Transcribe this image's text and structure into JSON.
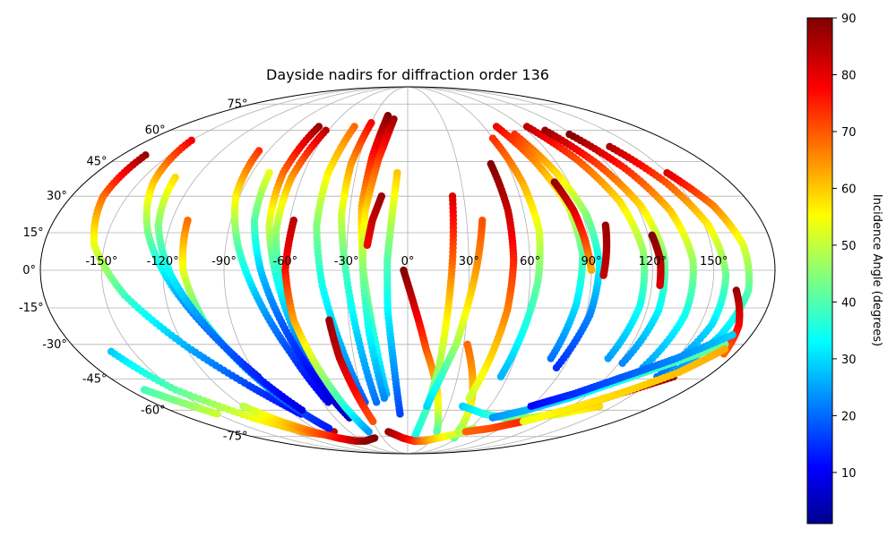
{
  "chart_data": {
    "type": "scatter",
    "projection": "mollweide",
    "title": "Dayside nadirs for diffraction order 136",
    "grid": true,
    "lon_ticks": [
      "-150°",
      "-120°",
      "-90°",
      "-60°",
      "-30°",
      "0°",
      "30°",
      "60°",
      "90°",
      "120°",
      "150°"
    ],
    "lat_ticks": [
      "75°",
      "60°",
      "45°",
      "30°",
      "15°",
      "0°",
      "-15°",
      "-30°",
      "-45°",
      "-60°",
      "-75°"
    ],
    "xlim": [
      -180,
      180
    ],
    "ylim": [
      -90,
      90
    ],
    "colorbar": {
      "label": "Incidence Angle (degrees)",
      "colormap": "jet",
      "range": [
        1,
        90
      ],
      "ticks": [
        "10",
        "20",
        "30",
        "40",
        "50",
        "60",
        "70",
        "80",
        "90"
      ]
    },
    "tracks": [
      {
        "lon": [
          -162,
          -150,
          -128,
          -108,
          -90,
          -76
        ],
        "lat": [
          -33,
          -50,
          -64,
          -72,
          -74,
          -72
        ],
        "inc": [
          30,
          42,
          55,
          65,
          75,
          85
        ]
      },
      {
        "lon": [
          -165,
          -163,
          -155,
          -140,
          -120,
          -100,
          -84
        ],
        "lat": [
          48,
          30,
          10,
          -10,
          -30,
          -48,
          -62
        ],
        "inc": [
          88,
          70,
          55,
          40,
          28,
          18,
          12
        ]
      },
      {
        "lon": [
          -150,
          -142,
          -130,
          -116,
          -102,
          -90
        ],
        "lat": [
          55,
          36,
          15,
          -6,
          -26,
          -44
        ],
        "inc": [
          80,
          62,
          45,
          30,
          18,
          8
        ]
      },
      {
        "lon": [
          -112,
          -110,
          -104,
          -94,
          -84,
          -76
        ],
        "lat": [
          20,
          0,
          -20,
          -40,
          -58,
          -70
        ],
        "inc": [
          70,
          55,
          40,
          28,
          20,
          14
        ]
      },
      {
        "lon": [
          -132,
          -126,
          -116,
          -104,
          -92,
          -80
        ],
        "lat": [
          38,
          18,
          -2,
          -22,
          -42,
          -60
        ],
        "inc": [
          60,
          46,
          34,
          24,
          16,
          10
        ]
      },
      {
        "lon": [
          -96,
          -92,
          -84,
          -74,
          -64,
          -56
        ],
        "lat": [
          50,
          30,
          10,
          -12,
          -34,
          -56
        ],
        "inc": [
          75,
          58,
          42,
          28,
          18,
          10
        ]
      },
      {
        "lon": [
          -70,
          -72,
          -70,
          -64,
          -58,
          -52
        ],
        "lat": [
          62,
          40,
          18,
          -4,
          -28,
          -52
        ],
        "inc": [
          88,
          70,
          52,
          36,
          24,
          14
        ]
      },
      {
        "lon": [
          -62,
          -66,
          -66,
          -62,
          -56,
          -50
        ],
        "lat": [
          60,
          38,
          16,
          -8,
          -32,
          -58
        ],
        "inc": [
          85,
          66,
          48,
          34,
          22,
          12
        ]
      },
      {
        "lon": [
          -80,
          -78,
          -72,
          -64,
          -56,
          -48
        ],
        "lat": [
          40,
          20,
          0,
          -22,
          -44,
          -64
        ],
        "inc": [
          55,
          42,
          30,
          20,
          12,
          6
        ]
      },
      {
        "lon": [
          -58,
          -60,
          -58,
          -52,
          -46,
          -40
        ],
        "lat": [
          20,
          0,
          -20,
          -40,
          -58,
          -72
        ],
        "inc": [
          85,
          78,
          65,
          50,
          38,
          26
        ]
      },
      {
        "lon": [
          -42,
          -46,
          -46,
          -42,
          -36,
          -30
        ],
        "lat": [
          62,
          40,
          18,
          -6,
          -30,
          -56
        ],
        "inc": [
          70,
          58,
          46,
          36,
          28,
          20
        ]
      },
      {
        "lon": [
          -30,
          -34,
          -34,
          -30,
          -26,
          -22
        ],
        "lat": [
          64,
          44,
          22,
          -2,
          -28,
          -56
        ],
        "inc": [
          80,
          66,
          52,
          40,
          30,
          22
        ]
      },
      {
        "lon": [
          -18,
          -22,
          -24,
          -22,
          -18,
          -14
        ],
        "lat": [
          68,
          48,
          26,
          2,
          -24,
          -52
        ],
        "inc": [
          90,
          78,
          64,
          50,
          38,
          28
        ]
      },
      {
        "lon": [
          -12,
          -18,
          -22,
          -22,
          -20,
          -16
        ],
        "lat": [
          66,
          46,
          24,
          0,
          -26,
          -54
        ],
        "inc": [
          88,
          74,
          60,
          46,
          34,
          24
        ]
      },
      {
        "lon": [
          -14,
          -18,
          -20
        ],
        "lat": [
          30,
          20,
          10
        ],
        "inc": [
          88,
          84,
          80
        ]
      },
      {
        "lon": [
          -6,
          -8,
          -10,
          -10,
          -8,
          -6
        ],
        "lat": [
          40,
          22,
          4,
          -16,
          -38,
          -62
        ],
        "inc": [
          62,
          52,
          42,
          34,
          26,
          18
        ]
      },
      {
        "lon": [
          -40,
          -38,
          -34,
          -30
        ],
        "lat": [
          -20,
          -36,
          -52,
          -66
        ],
        "inc": [
          88,
          84,
          78,
          72
        ]
      },
      {
        "lon": [
          -2,
          4,
          10,
          18,
          24,
          30
        ],
        "lat": [
          0,
          -16,
          -32,
          -48,
          -62,
          -72
        ],
        "inc": [
          90,
          82,
          72,
          62,
          52,
          42
        ]
      },
      {
        "lon": [
          8,
          14,
          18,
          20,
          22,
          24
        ],
        "lat": [
          -76,
          -60,
          -40,
          -18,
          4,
          30
        ],
        "inc": [
          35,
          40,
          48,
          58,
          70,
          82
        ]
      },
      {
        "lon": [
          14,
          20,
          26,
          30,
          34,
          38
        ],
        "lat": [
          -58,
          -44,
          -30,
          -14,
          2,
          20
        ],
        "inc": [
          30,
          38,
          48,
          58,
          66,
          72
        ]
      },
      {
        "lon": [
          32,
          38,
          44,
          48,
          52,
          56
        ],
        "lat": [
          -30,
          -42,
          -54,
          -64,
          -72,
          -76
        ],
        "inc": [
          70,
          66,
          60,
          54,
          48,
          42
        ]
      },
      {
        "lon": [
          50,
          52,
          52,
          50,
          46,
          42
        ],
        "lat": [
          44,
          24,
          4,
          -16,
          -36,
          -54
        ],
        "inc": [
          90,
          84,
          76,
          68,
          60,
          52
        ]
      },
      {
        "lon": [
          60,
          64,
          66,
          64,
          60,
          56
        ],
        "lat": [
          56,
          36,
          16,
          -4,
          -24,
          -44
        ],
        "inc": [
          75,
          64,
          54,
          44,
          36,
          28
        ]
      },
      {
        "lon": [
          70,
          78,
          84,
          86,
          84,
          80
        ],
        "lat": [
          62,
          44,
          26,
          6,
          -14,
          -36
        ],
        "inc": [
          80,
          66,
          54,
          42,
          32,
          22
        ]
      },
      {
        "lon": [
          78,
          86,
          92,
          94,
          92,
          86
        ],
        "lat": [
          58,
          40,
          22,
          2,
          -18,
          -40
        ],
        "inc": [
          75,
          60,
          46,
          34,
          24,
          16
        ]
      },
      {
        "lon": [
          94,
          104,
          112,
          116,
          116,
          112
        ],
        "lat": [
          62,
          46,
          28,
          8,
          -14,
          -36
        ],
        "inc": [
          85,
          72,
          60,
          48,
          36,
          26
        ]
      },
      {
        "lon": [
          104,
          114,
          122,
          126,
          126,
          122
        ],
        "lat": [
          60,
          44,
          26,
          6,
          -16,
          -38
        ],
        "inc": [
          88,
          74,
          60,
          46,
          34,
          24
        ]
      },
      {
        "lon": [
          118,
          128,
          136,
          140,
          140,
          136
        ],
        "lat": [
          58,
          42,
          24,
          4,
          -18,
          -40
        ],
        "inc": [
          90,
          76,
          62,
          48,
          36,
          26
        ]
      },
      {
        "lon": [
          134,
          144,
          152,
          156,
          156,
          150
        ],
        "lat": [
          52,
          36,
          18,
          -2,
          -22,
          -44
        ],
        "inc": [
          86,
          72,
          58,
          44,
          32,
          22
        ]
      },
      {
        "lon": [
          150,
          160,
          166,
          168,
          164,
          156
        ],
        "lat": [
          40,
          26,
          10,
          -8,
          -26,
          -44
        ],
        "inc": [
          82,
          68,
          54,
          42,
          32,
          24
        ]
      },
      {
        "lon": [
          100,
          98,
          96
        ],
        "lat": [
          18,
          8,
          -2
        ],
        "inc": [
          88,
          86,
          84
        ]
      },
      {
        "lon": [
          122,
          124,
          124
        ],
        "lat": [
          14,
          4,
          -6
        ],
        "inc": [
          90,
          86,
          82
        ]
      },
      {
        "lon": [
          82,
          86,
          88,
          90
        ],
        "lat": [
          36,
          24,
          12,
          0
        ],
        "inc": [
          88,
          82,
          74,
          64
        ]
      },
      {
        "lon": [
          162,
          170,
          174
        ],
        "lat": [
          -8,
          -22,
          -34
        ],
        "inc": [
          88,
          80,
          70
        ]
      },
      {
        "lon": [
          -120,
          -110,
          -98,
          -84,
          -70,
          -56,
          -40
        ],
        "lat": [
          -58,
          -66,
          -72,
          -76,
          -78,
          -78,
          -76
        ],
        "inc": [
          50,
          60,
          70,
          78,
          84,
          88,
          90
        ]
      },
      {
        "lon": [
          -20,
          -6,
          8,
          22,
          36,
          50,
          64
        ],
        "lat": [
          -72,
          -76,
          -78,
          -78,
          -76,
          -74,
          -70
        ],
        "inc": [
          88,
          82,
          76,
          68,
          60,
          54,
          48
        ]
      },
      {
        "lon": [
          40,
          60,
          80,
          100,
          120,
          140
        ],
        "lat": [
          -58,
          -62,
          -64,
          -64,
          -62,
          -58
        ],
        "inc": [
          30,
          36,
          42,
          48,
          54,
          60
        ]
      },
      {
        "lon": [
          60,
          80,
          100,
          120,
          140,
          160
        ],
        "lat": [
          -72,
          -70,
          -66,
          -60,
          -52,
          -44
        ],
        "inc": [
          70,
          72,
          76,
          80,
          84,
          88
        ]
      },
      {
        "lon": [
          70,
          90,
          110,
          130,
          150,
          170
        ],
        "lat": [
          -64,
          -60,
          -54,
          -46,
          -38,
          -30
        ],
        "inc": [
          25,
          28,
          32,
          36,
          40,
          44
        ]
      },
      {
        "lon": [
          90,
          110,
          130,
          150,
          170
        ],
        "lat": [
          -58,
          -52,
          -44,
          -36,
          -26
        ],
        "inc": [
          12,
          16,
          20,
          24,
          30
        ]
      },
      {
        "lon": [
          100,
          120,
          140,
          160,
          172
        ],
        "lat": [
          -66,
          -60,
          -52,
          -42,
          -32
        ],
        "inc": [
          55,
          58,
          60,
          62,
          64
        ]
      },
      {
        "lon": [
          -170,
          -160,
          -150
        ],
        "lat": [
          -50,
          -56,
          -62
        ],
        "inc": [
          40,
          46,
          52
        ]
      }
    ]
  }
}
